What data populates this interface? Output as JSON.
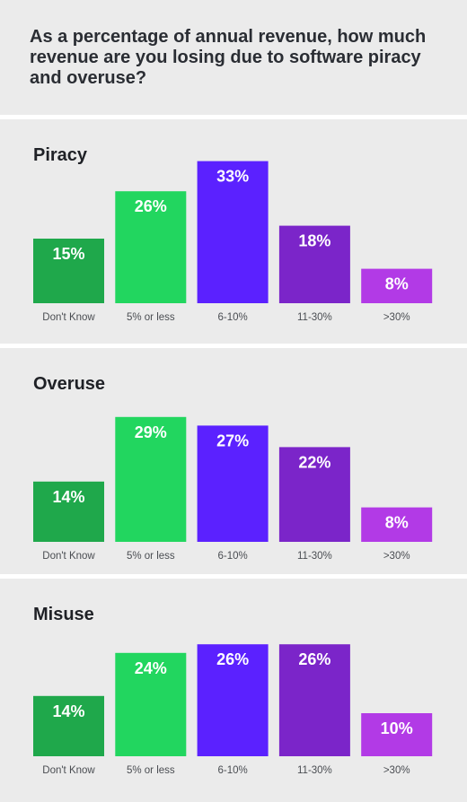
{
  "title": "As a percentage of annual revenue, how much revenue are you losing due to software piracy and overuse?",
  "chart_data": [
    {
      "type": "bar",
      "title": "Piracy",
      "categories": [
        "Don't Know",
        "5% or less",
        "6-10%",
        "11-30%",
        ">30%"
      ],
      "values": [
        15,
        26,
        33,
        18,
        8
      ],
      "value_labels": [
        "15%",
        "26%",
        "33%",
        "18%",
        "8%"
      ],
      "colors": [
        "#1fa84b",
        "#22d65f",
        "#5b21ff",
        "#7b25c9",
        "#b23ae6"
      ]
    },
    {
      "type": "bar",
      "title": "Overuse",
      "categories": [
        "Don't Know",
        "5% or less",
        "6-10%",
        "11-30%",
        ">30%"
      ],
      "values": [
        14,
        29,
        27,
        22,
        8
      ],
      "value_labels": [
        "14%",
        "29%",
        "27%",
        "22%",
        "8%"
      ],
      "colors": [
        "#1fa84b",
        "#22d65f",
        "#5b21ff",
        "#7b25c9",
        "#b23ae6"
      ]
    },
    {
      "type": "bar",
      "title": "Misuse",
      "categories": [
        "Don't Know",
        "5% or less",
        "6-10%",
        "11-30%",
        ">30%"
      ],
      "values": [
        14,
        24,
        26,
        26,
        10
      ],
      "value_labels": [
        "14%",
        "24%",
        "26%",
        "26%",
        "10%"
      ],
      "colors": [
        "#1fa84b",
        "#22d65f",
        "#5b21ff",
        "#7b25c9",
        "#b23ae6"
      ]
    }
  ]
}
